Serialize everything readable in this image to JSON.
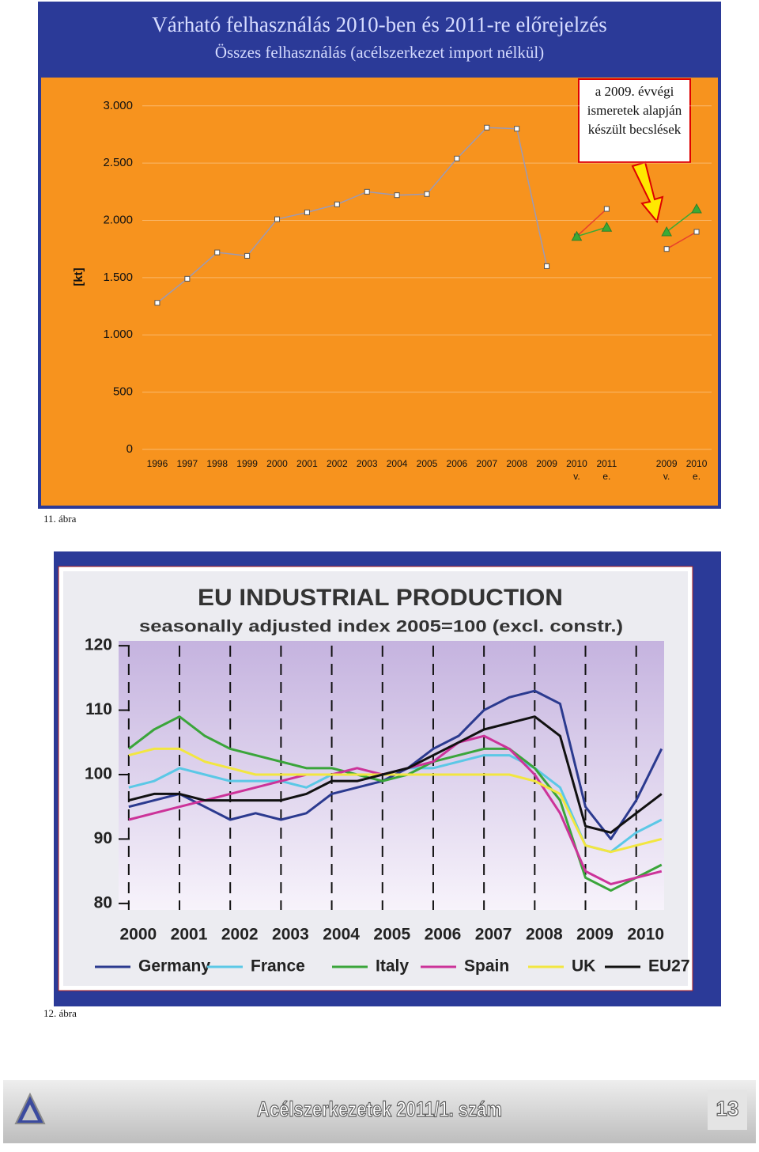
{
  "chart_data": [
    {
      "type": "line",
      "title": "Várható felhasználás 2010-ben és 2011-re előrejelzés",
      "subtitle": "Összes felhasználás (acélszerkezet import nélkül)",
      "y_label": "[kt]",
      "annotation": "a 2009. évvégi ismeretek alapján készült becslések",
      "categories": [
        "1996",
        "1997",
        "1998",
        "1999",
        "2000",
        "2001",
        "2002",
        "2003",
        "2004",
        "2005",
        "2006",
        "2007",
        "2008",
        "2009",
        "2010 v.",
        "2011 e.",
        null,
        "2009 v.",
        "2010 e."
      ],
      "series": [
        {
          "color": "#9a9ab8",
          "marker": "square",
          "values": [
            1280,
            1490,
            1720,
            1690,
            2010,
            2070,
            2140,
            2250,
            2220,
            2230,
            2540,
            2810,
            2800,
            1600,
            null,
            null,
            null,
            null,
            null
          ]
        },
        {
          "color": "#e8412c",
          "marker": "square",
          "values": [
            null,
            null,
            null,
            null,
            null,
            null,
            null,
            null,
            null,
            null,
            null,
            null,
            null,
            null,
            1860,
            2100,
            null,
            1750,
            1900
          ]
        },
        {
          "color": "#3aaa35",
          "marker": "triangle",
          "values": [
            null,
            null,
            null,
            null,
            null,
            null,
            null,
            null,
            null,
            null,
            null,
            null,
            null,
            null,
            1860,
            1940,
            null,
            1900,
            2100
          ]
        }
      ],
      "ylim": [
        0,
        3250
      ],
      "yticks": [
        0,
        500,
        {
          "value": 1000,
          "label": "1.000"
        },
        {
          "value": 1500,
          "label": "1.500"
        },
        {
          "value": 2000,
          "label": "2.000"
        },
        {
          "value": 2500,
          "label": "2.500"
        },
        {
          "value": 3000,
          "label": "3.000"
        }
      ],
      "grid": true
    },
    {
      "type": "line",
      "title": "EU INDUSTRIAL PRODUCTION",
      "subtitle": "seasonally adjusted index 2005=100 (excl. constr.)",
      "x": [
        2000,
        2000.5,
        2001,
        2001.5,
        2002,
        2002.5,
        2003,
        2003.5,
        2004,
        2004.5,
        2005,
        2005.5,
        2006,
        2006.5,
        2007,
        2007.5,
        2008,
        2008.5,
        2009,
        2009.5,
        2010,
        2010.5
      ],
      "series": [
        {
          "name": "Germany",
          "color": "#2b3a8f",
          "values": [
            95,
            96,
            97,
            95,
            93,
            94,
            93,
            94,
            97,
            98,
            99,
            101,
            104,
            106,
            110,
            112,
            113,
            111,
            95,
            90,
            96,
            104
          ]
        },
        {
          "name": "France",
          "color": "#5bc8e6",
          "values": [
            98,
            99,
            101,
            100,
            99,
            99,
            99,
            98,
            100,
            100,
            100,
            101,
            101,
            102,
            103,
            103,
            101,
            98,
            89,
            88,
            91,
            93
          ]
        },
        {
          "name": "Italy",
          "color": "#3aa53a",
          "values": [
            104,
            107,
            109,
            106,
            104,
            103,
            102,
            101,
            101,
            100,
            99,
            100,
            102,
            103,
            104,
            104,
            101,
            96,
            84,
            82,
            84,
            86
          ]
        },
        {
          "name": "Spain",
          "color": "#cc3399",
          "values": [
            93,
            94,
            95,
            96,
            97,
            98,
            99,
            100,
            100,
            101,
            100,
            101,
            102,
            105,
            106,
            104,
            100,
            94,
            85,
            83,
            84,
            85
          ]
        },
        {
          "name": "UK",
          "color": "#f2e640",
          "values": [
            103,
            104,
            104,
            102,
            101,
            100,
            100,
            100,
            100,
            100,
            100,
            100,
            100,
            100,
            100,
            100,
            99,
            97,
            89,
            88,
            89,
            90
          ]
        },
        {
          "name": "EU27",
          "color": "#111111",
          "values": [
            96,
            97,
            97,
            96,
            96,
            96,
            96,
            97,
            99,
            99,
            100,
            101,
            103,
            105,
            107,
            108,
            109,
            106,
            92,
            91,
            94,
            97
          ]
        }
      ],
      "xlim": [
        1999.8,
        2010.55
      ],
      "xticks": [
        2000,
        2001,
        2002,
        2003,
        2004,
        2005,
        2006,
        2007,
        2008,
        2009,
        2010
      ],
      "ylim": [
        79,
        121
      ],
      "yticks": [
        80,
        90,
        100,
        110,
        120
      ],
      "legend": "bottom"
    }
  ],
  "captions": [
    "11. ábra",
    "12. ábra"
  ],
  "footer": {
    "title": "Acélszerkezetek 2011/1. szám",
    "page": 13
  }
}
